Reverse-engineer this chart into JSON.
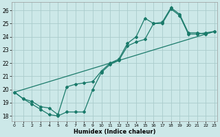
{
  "xlabel": "Humidex (Indice chaleur)",
  "ylabel": "",
  "background_color": "#cce8e8",
  "grid_color": "#aacccc",
  "line_color": "#1a7a6a",
  "x_ticks": [
    0,
    1,
    2,
    3,
    4,
    5,
    6,
    7,
    8,
    9,
    10,
    11,
    12,
    13,
    14,
    15,
    16,
    17,
    18,
    19,
    20,
    21,
    22,
    23
  ],
  "y_ticks": [
    18,
    19,
    20,
    21,
    22,
    23,
    24,
    25,
    26
  ],
  "xlim": [
    -0.3,
    23.3
  ],
  "ylim": [
    17.6,
    26.6
  ],
  "series1_x": [
    0,
    1,
    2,
    3,
    4,
    5,
    6,
    7,
    8,
    9,
    10,
    11,
    12,
    13,
    14,
    15,
    16,
    17,
    18,
    19,
    20,
    21,
    22,
    23
  ],
  "series1_y": [
    19.8,
    19.3,
    18.9,
    18.5,
    18.1,
    18.0,
    18.3,
    18.3,
    18.3,
    20.0,
    21.3,
    21.9,
    22.2,
    23.3,
    23.6,
    23.8,
    25.0,
    25.0,
    26.1,
    25.6,
    24.2,
    24.2,
    24.3,
    24.4
  ],
  "series2_x": [
    0,
    1,
    2,
    3,
    4,
    5,
    6,
    7,
    8,
    9,
    10,
    11,
    12,
    13,
    14,
    15,
    16,
    17,
    18,
    19,
    20,
    21,
    22,
    23
  ],
  "series2_y": [
    19.8,
    19.3,
    19.1,
    18.7,
    18.6,
    18.1,
    20.2,
    20.4,
    20.5,
    20.6,
    21.4,
    22.0,
    22.3,
    23.5,
    24.0,
    25.4,
    25.0,
    25.1,
    26.2,
    25.7,
    24.3,
    24.3,
    24.2,
    24.4
  ],
  "series3_x": [
    0,
    23
  ],
  "series3_y": [
    19.8,
    24.4
  ]
}
